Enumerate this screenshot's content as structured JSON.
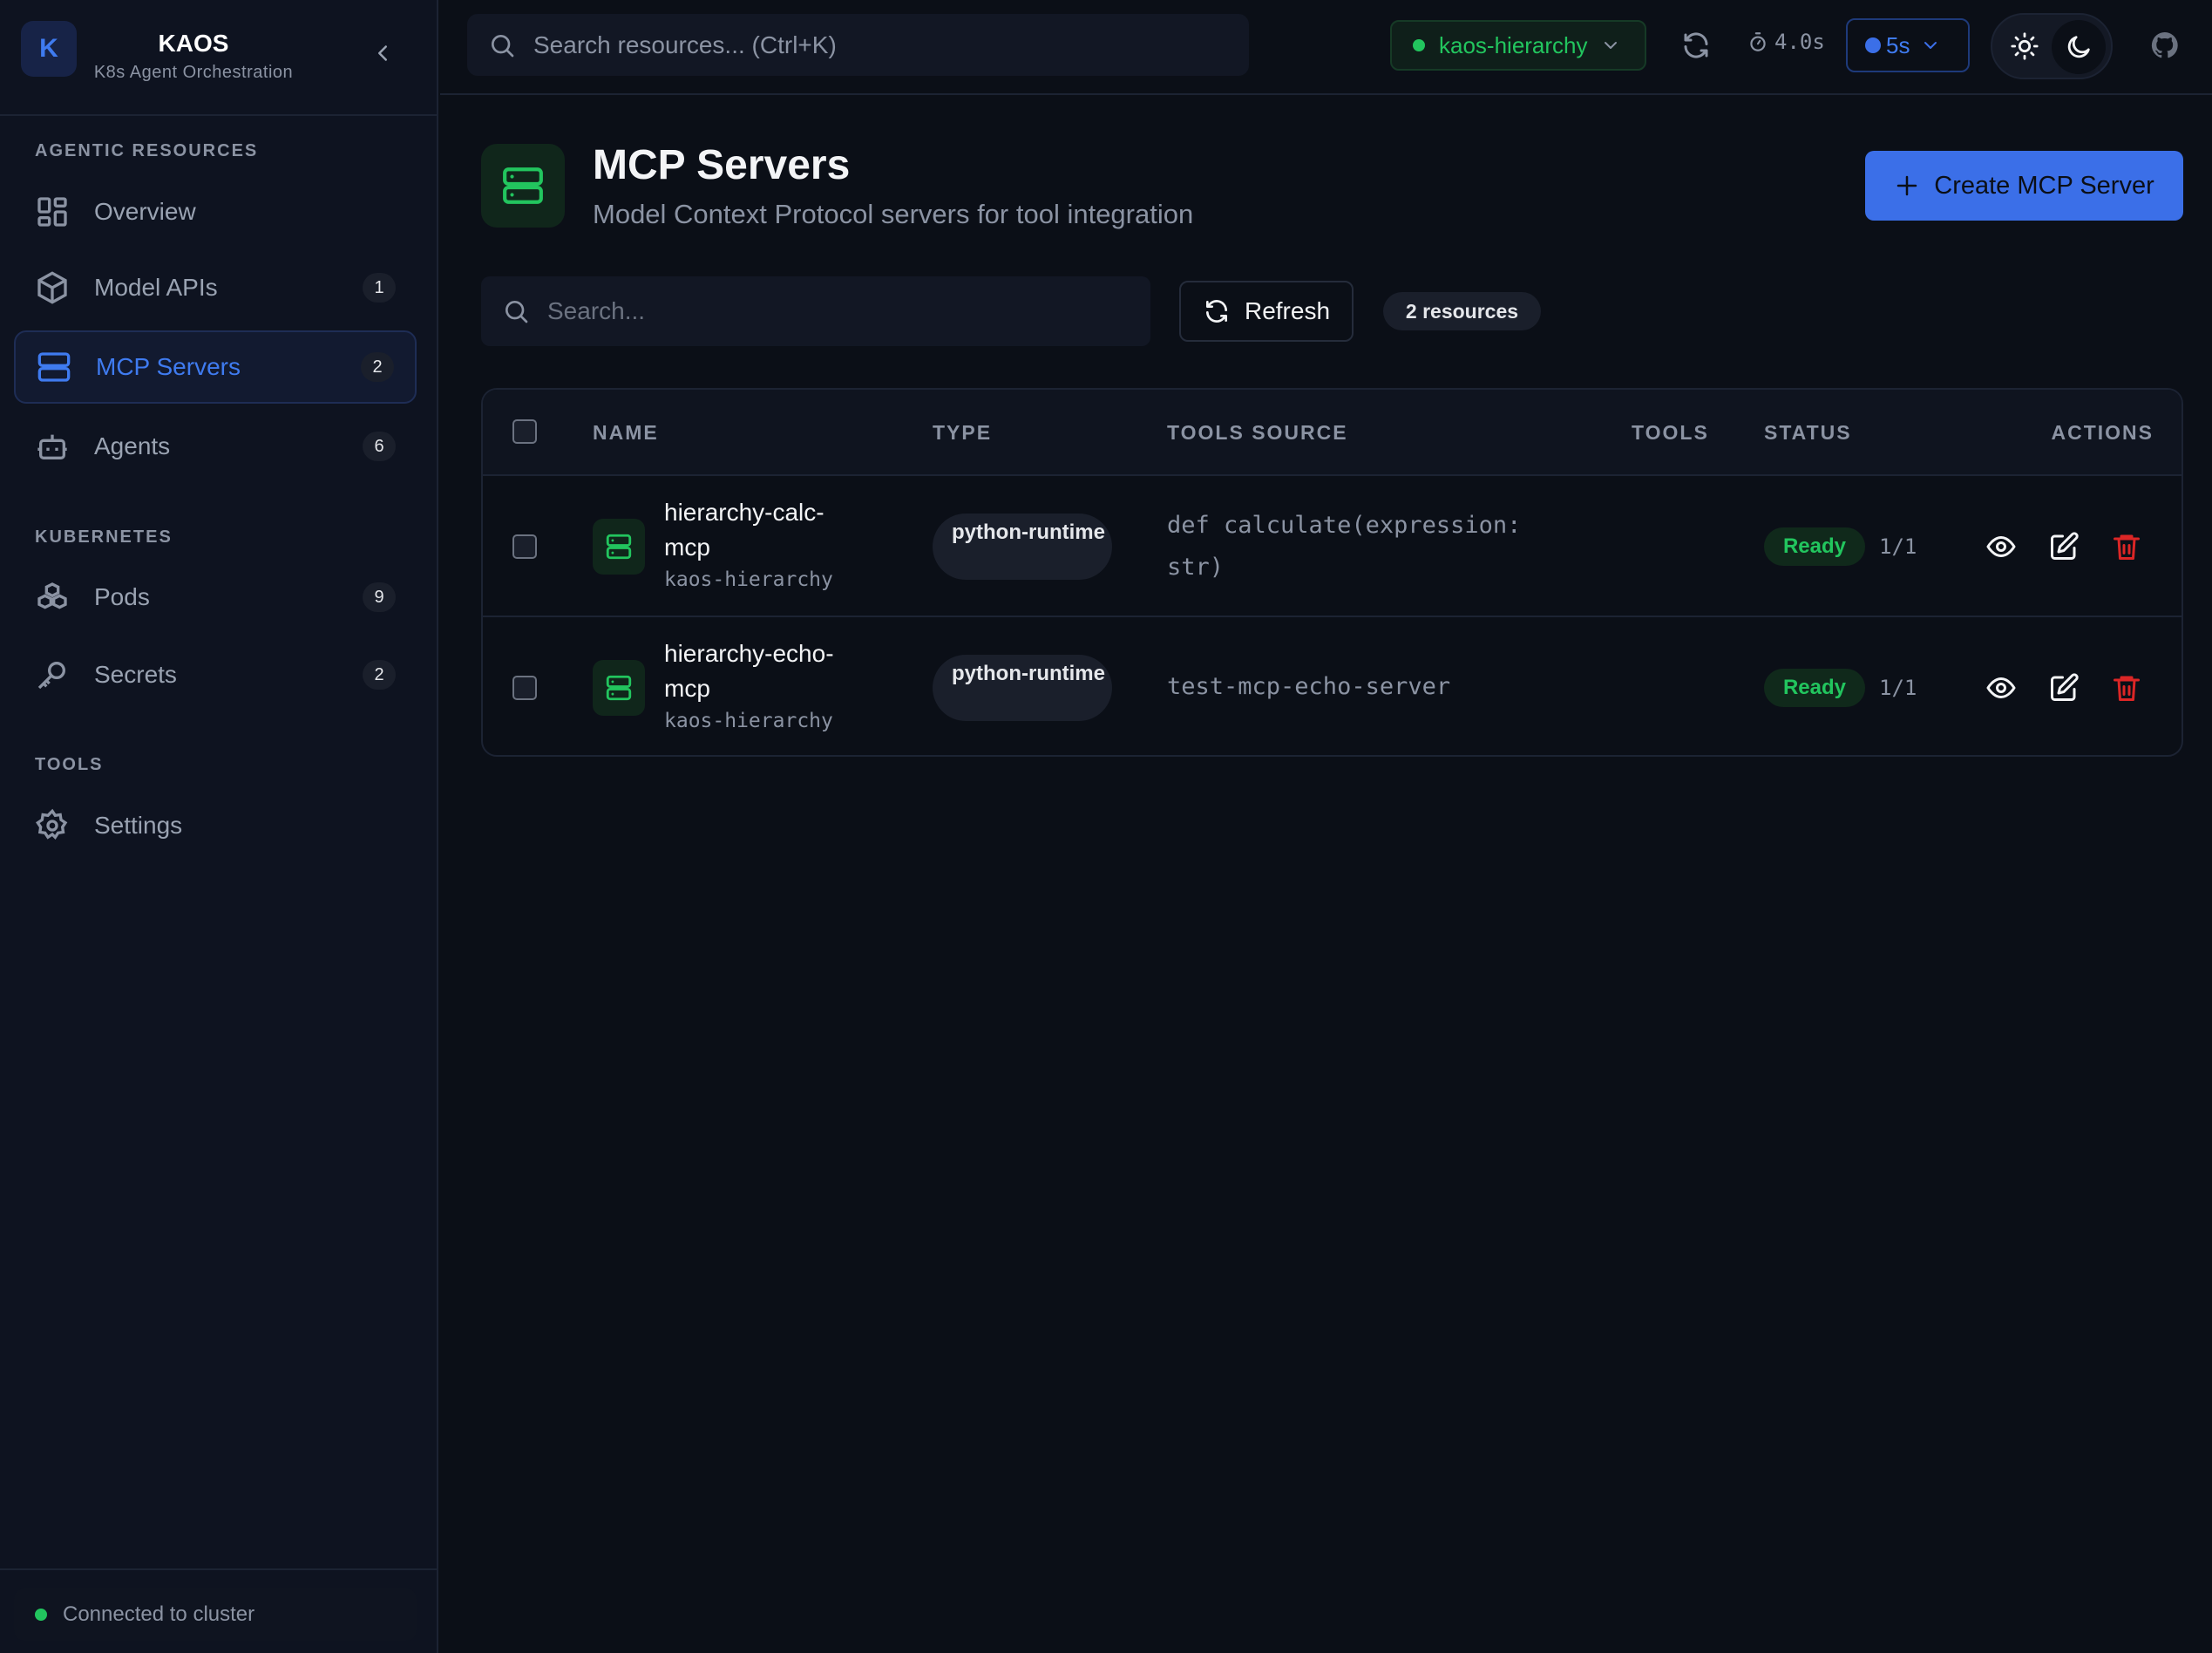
{
  "app": {
    "logo_letter": "K",
    "title": "KAOS",
    "subtitle": "K8s Agent Orchestration"
  },
  "sidebar": {
    "sections": [
      {
        "label": "AGENTIC RESOURCES",
        "items": [
          {
            "label": "Overview",
            "icon": "grid-icon"
          },
          {
            "label": "Model APIs",
            "count": "1",
            "icon": "cube-icon"
          },
          {
            "label": "MCP Servers",
            "count": "2",
            "icon": "server-icon",
            "active": true
          },
          {
            "label": "Agents",
            "count": "6",
            "icon": "bot-icon"
          }
        ]
      },
      {
        "label": "KUBERNETES",
        "items": [
          {
            "label": "Pods",
            "count": "9",
            "icon": "boxes-icon"
          },
          {
            "label": "Secrets",
            "count": "2",
            "icon": "key-icon"
          }
        ]
      },
      {
        "label": "TOOLS",
        "items": [
          {
            "label": "Settings",
            "icon": "gear-icon"
          }
        ]
      }
    ],
    "status": "Connected to cluster"
  },
  "topbar": {
    "search_placeholder": "Search resources... (Ctrl+K)",
    "namespace": "kaos-hierarchy",
    "timer": "4.0s",
    "poll_interval": "5s",
    "theme": "dark"
  },
  "page": {
    "title": "MCP Servers",
    "subtitle": "Model Context Protocol servers for tool integration",
    "create_label": "Create MCP Server",
    "search_placeholder": "Search...",
    "refresh_label": "Refresh",
    "resource_count": "2 resources"
  },
  "table": {
    "headers": [
      "NAME",
      "TYPE",
      "TOOLS SOURCE",
      "TOOLS",
      "STATUS",
      "ACTIONS"
    ],
    "rows": [
      {
        "name": "hierarchy-calc-mcp",
        "namespace": "kaos-hierarchy",
        "type": "python-runtime",
        "tools_source": "def calculate(expression: str)",
        "tools": "",
        "status": "Ready",
        "replicas": "1/1"
      },
      {
        "name": "hierarchy-echo-mcp",
        "namespace": "kaos-hierarchy",
        "type": "python-runtime",
        "tools_source": "test-mcp-echo-server",
        "tools": "",
        "status": "Ready",
        "replicas": "1/1"
      }
    ]
  },
  "colors": {
    "accent": "#3b6fe8",
    "success": "#22c55e",
    "danger": "#dc2626",
    "background": "#0b0f17"
  }
}
